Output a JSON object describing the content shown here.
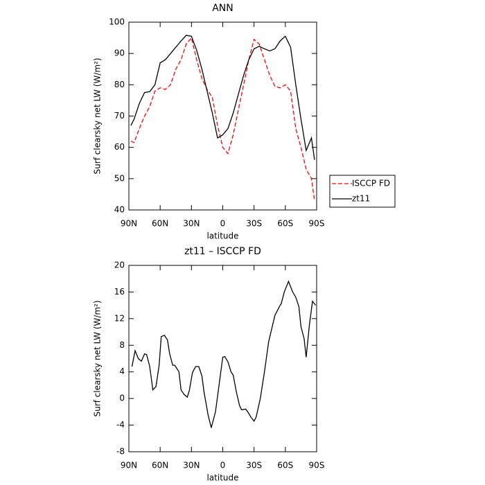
{
  "chart_data": [
    {
      "type": "line",
      "title": "ANN",
      "xlabel": "latitude",
      "ylabel": "Surf clearsky net LW (W/m²)",
      "x": [
        88,
        85,
        80,
        75,
        70,
        65,
        60,
        55,
        50,
        45,
        40,
        35,
        30,
        25,
        20,
        15,
        10,
        5,
        0,
        -5,
        -10,
        -15,
        -20,
        -25,
        -30,
        -35,
        -40,
        -45,
        -50,
        -55,
        -60,
        -65,
        -70,
        -75,
        -80,
        -85,
        -88
      ],
      "series": [
        {
          "name": "ISCCP FD",
          "color": "#ff0000",
          "dash": "dashed",
          "values": [
            62,
            61.5,
            66,
            70,
            73,
            78,
            79,
            78.5,
            80,
            85,
            88,
            93,
            95,
            88,
            82,
            78.5,
            76,
            67,
            60,
            58,
            64,
            72,
            80,
            88,
            94.5,
            93,
            88,
            83,
            79.5,
            79,
            80,
            78,
            66,
            60,
            53,
            50,
            43
          ]
        },
        {
          "name": "zt11",
          "color": "#000000",
          "dash": "solid",
          "values": [
            67,
            69,
            74,
            77.5,
            77.8,
            80,
            87,
            88,
            90,
            92,
            94,
            95.8,
            95.5,
            91,
            85,
            78,
            71,
            63,
            64,
            66,
            71,
            77,
            83,
            88,
            91.5,
            92.3,
            91.5,
            90.8,
            91.5,
            94,
            95.5,
            92,
            80,
            69,
            59,
            63,
            56
          ]
        }
      ],
      "xlim": [
        90,
        -90
      ],
      "xticks": [
        {
          "value": 90,
          "label": "90N"
        },
        {
          "value": 60,
          "label": "60N"
        },
        {
          "value": 30,
          "label": "30N"
        },
        0,
        {
          "value": -30,
          "label": "30S"
        },
        {
          "value": -60,
          "label": "60S"
        },
        {
          "value": -90,
          "label": "90S"
        }
      ],
      "ylim": [
        40,
        100
      ],
      "yticks": [
        40,
        50,
        60,
        70,
        80,
        90,
        100
      ],
      "legend": "outside right"
    },
    {
      "type": "line",
      "title": "zt11 – ISCCP FD",
      "xlabel": "latitude",
      "ylabel": "Surf clearsky net LW (W/m²)",
      "x": [
        87,
        84,
        81,
        78,
        75,
        73,
        70,
        67,
        64,
        61,
        59,
        56,
        53,
        51,
        48,
        46,
        42,
        40,
        37,
        34,
        32,
        29,
        26,
        23,
        20,
        18,
        14,
        11,
        7,
        4,
        0,
        -2,
        -5,
        -8,
        -10,
        -13,
        -16,
        -18,
        -22,
        -24,
        -27,
        -30,
        -32,
        -36,
        -40,
        -44,
        -50,
        -55,
        -56,
        -59,
        -63,
        -67,
        -70,
        -73,
        -75,
        -78,
        -80,
        -83,
        -86,
        -89
      ],
      "values": [
        4.8,
        7.2,
        6,
        5.6,
        6.7,
        6.6,
        4.8,
        1.3,
        1.8,
        5,
        9.3,
        9.5,
        8.8,
        6.8,
        5,
        5,
        4,
        1.3,
        0.6,
        0.2,
        1.2,
        3.9,
        4.8,
        4.8,
        3.4,
        1,
        -2.5,
        -4.4,
        -2,
        1.5,
        6.2,
        6.3,
        5.5,
        4,
        3.5,
        1,
        -1,
        -1.7,
        -1.6,
        -2,
        -2.8,
        -3.4,
        -2.8,
        0,
        4,
        8.5,
        12.5,
        14,
        14.2,
        16,
        17.6,
        16,
        15.2,
        13.8,
        10.8,
        9,
        6.2,
        11,
        14.6,
        14
      ],
      "color": "#000000",
      "xlim": [
        90,
        -90
      ],
      "xticks": [
        {
          "value": 90,
          "label": "90N"
        },
        {
          "value": 60,
          "label": "60N"
        },
        {
          "value": 30,
          "label": "30N"
        },
        0,
        {
          "value": -30,
          "label": "30S"
        },
        {
          "value": -60,
          "label": "60S"
        },
        {
          "value": -90,
          "label": "90S"
        }
      ],
      "ylim": [
        -8,
        20
      ],
      "yticks": [
        -8,
        -4,
        0,
        4,
        8,
        12,
        16,
        20
      ]
    }
  ]
}
